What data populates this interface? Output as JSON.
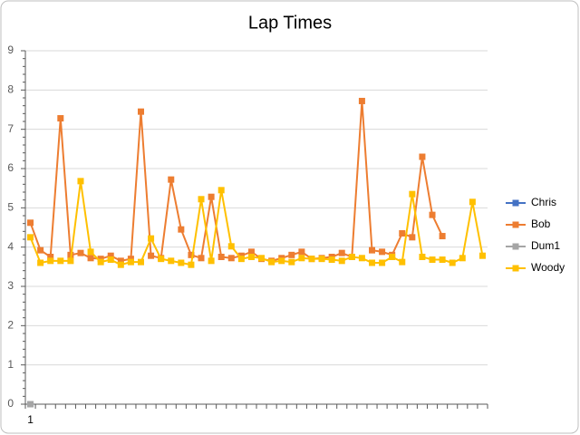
{
  "chart_data": {
    "type": "line",
    "title": "Lap Times",
    "categories": [
      "1",
      null,
      null,
      null,
      null,
      null,
      null,
      null,
      null,
      null,
      null,
      null,
      null,
      null,
      null,
      null,
      null,
      null,
      null,
      null,
      null,
      null,
      null,
      null,
      null,
      null,
      null,
      null,
      null,
      null,
      null,
      null,
      null,
      null,
      null,
      null,
      null,
      null,
      null,
      null,
      null,
      null,
      null,
      null,
      null,
      null
    ],
    "series": [
      {
        "name": "Chris",
        "color": "#4472c4",
        "values": [
          0,
          null,
          null,
          null,
          null,
          null,
          null,
          null,
          null,
          null,
          null,
          null,
          null,
          null,
          null,
          null,
          null,
          null,
          null,
          null,
          null,
          null,
          null,
          null,
          null,
          null,
          null,
          null,
          null,
          null,
          null,
          null,
          null,
          null,
          null,
          null,
          null,
          null,
          null,
          null,
          null,
          null,
          null,
          null,
          null,
          null
        ]
      },
      {
        "name": "Bob",
        "color": "#ed7d31",
        "values": [
          4.62,
          3.92,
          3.75,
          7.28,
          3.8,
          3.85,
          3.72,
          3.7,
          3.78,
          3.65,
          3.7,
          7.45,
          3.78,
          3.72,
          5.72,
          4.45,
          3.8,
          3.72,
          5.28,
          3.75,
          3.72,
          3.78,
          3.88,
          3.7,
          3.65,
          3.72,
          3.8,
          3.88,
          3.7,
          3.72,
          3.75,
          3.85,
          3.75,
          7.72,
          3.92,
          3.88,
          3.8,
          4.35,
          4.25,
          6.3,
          4.82,
          4.28,
          null,
          null,
          null,
          null
        ]
      },
      {
        "name": "Dum1",
        "color": "#a5a5a5",
        "values": [
          0,
          null,
          null,
          null,
          null,
          null,
          null,
          null,
          null,
          null,
          null,
          null,
          null,
          null,
          null,
          null,
          null,
          null,
          null,
          null,
          null,
          null,
          null,
          null,
          null,
          null,
          null,
          null,
          null,
          null,
          null,
          null,
          null,
          null,
          null,
          null,
          null,
          null,
          null,
          null,
          null,
          null,
          null,
          null,
          null,
          null
        ]
      },
      {
        "name": "Woody",
        "color": "#ffc000",
        "values": [
          4.25,
          3.6,
          3.65,
          3.65,
          3.65,
          5.68,
          3.88,
          3.62,
          3.68,
          3.55,
          3.62,
          3.62,
          4.22,
          3.7,
          3.65,
          3.6,
          3.55,
          5.22,
          3.65,
          5.45,
          4.02,
          3.7,
          3.75,
          3.72,
          3.62,
          3.65,
          3.62,
          3.72,
          3.7,
          3.7,
          3.68,
          3.65,
          3.75,
          3.72,
          3.6,
          3.6,
          3.75,
          3.62,
          5.35,
          3.75,
          3.68,
          3.68,
          3.6,
          3.72,
          5.15,
          3.78
        ]
      }
    ],
    "ylim": [
      0,
      9
    ],
    "yticks": [
      0,
      1,
      2,
      3,
      4,
      5,
      6,
      7,
      8,
      9
    ],
    "grid": true,
    "legend": "right"
  }
}
